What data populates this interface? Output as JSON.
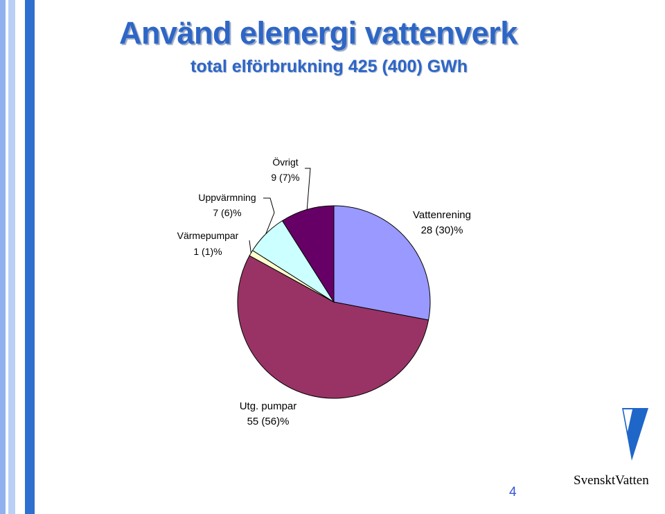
{
  "slide": {
    "title": "Använd elenergi vattenverk",
    "subtitle": "total elförbrukning 425 (400) GWh",
    "page_number": "4"
  },
  "logo": {
    "text": "SvensktVatten",
    "color": "#1f66c9"
  },
  "chart_data": {
    "type": "pie",
    "title": "",
    "start_angle_deg": 0,
    "direction": "clockwise",
    "slices": [
      {
        "key": "vattenrening",
        "label": "Vattenrening",
        "value": 28,
        "previous": 30,
        "value_label": "28 (30)%",
        "color": "#9999ff"
      },
      {
        "key": "utg-pumpar",
        "label": "Utg. pumpar",
        "value": 55,
        "previous": 56,
        "value_label": "55 (56)%",
        "color": "#993366"
      },
      {
        "key": "varmepumpar",
        "label": "Värmepumpar",
        "value": 1,
        "previous": 1,
        "value_label": "1 (1)%",
        "color": "#ffffcc"
      },
      {
        "key": "uppvarmning",
        "label": "Uppvärmning",
        "value": 7,
        "previous": 6,
        "value_label": "7 (6)%",
        "color": "#ccffff"
      },
      {
        "key": "ovrigt",
        "label": "Övrigt",
        "value": 9,
        "previous": 7,
        "value_label": "9 (7)%",
        "color": "#660066"
      }
    ]
  }
}
